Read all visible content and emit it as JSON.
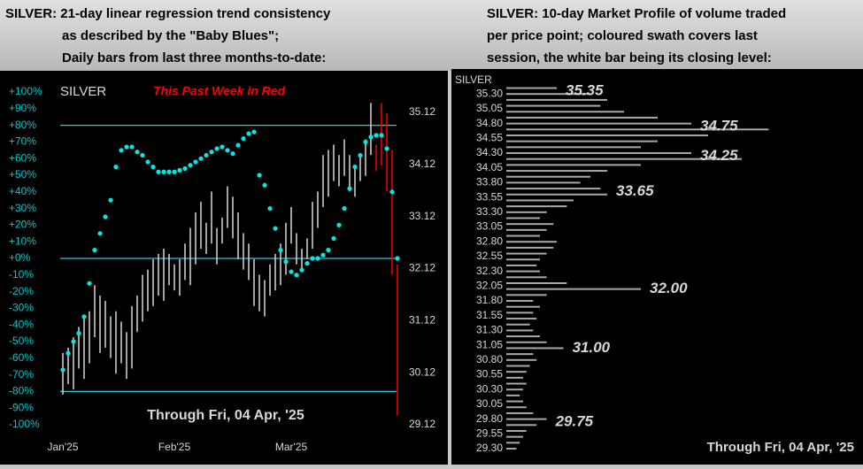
{
  "chart_data": [
    {
      "type": "regression",
      "title": [
        "SILVER:  21-day linear regression trend consistency",
        "as described by the \"Baby Blues\";",
        "Daily bars from last three months-to-date:"
      ],
      "label": "SILVER",
      "highlight_label": "This Past Week in Red",
      "highlight_color": "#ff0000",
      "highlight_count": 5,
      "footer": "Through Fri, 04 Apr, '25",
      "xlim": [
        -1,
        64
      ],
      "xticks": [
        {
          "value": 0,
          "label": "Jan'25"
        },
        {
          "value": 21,
          "label": "Feb'25"
        },
        {
          "value": 43,
          "label": "Mar'25"
        }
      ],
      "ylim": [
        -100,
        100
      ],
      "yticks": [
        {
          "value": 100,
          "label": "+100%"
        },
        {
          "value": 90,
          "label": "+90%"
        },
        {
          "value": 80,
          "label": "+80%"
        },
        {
          "value": 70,
          "label": "+70%"
        },
        {
          "value": 60,
          "label": "+60%"
        },
        {
          "value": 50,
          "label": "+50%"
        },
        {
          "value": 40,
          "label": "+40%"
        },
        {
          "value": 30,
          "label": "+30%"
        },
        {
          "value": 20,
          "label": "+20%"
        },
        {
          "value": 10,
          "label": "+10%"
        },
        {
          "value": 0,
          "label": "+0%"
        },
        {
          "value": -10,
          "label": "-10%"
        },
        {
          "value": -20,
          "label": "-20%"
        },
        {
          "value": -30,
          "label": "-30%"
        },
        {
          "value": -40,
          "label": "-40%"
        },
        {
          "value": -50,
          "label": "-50%"
        },
        {
          "value": -60,
          "label": "-60%"
        },
        {
          "value": -70,
          "label": "-70%"
        },
        {
          "value": -80,
          "label": "-80%"
        },
        {
          "value": -90,
          "label": "-90%"
        },
        {
          "value": -100,
          "label": "-100%"
        }
      ],
      "ref_lines": [
        80,
        0,
        -80
      ],
      "line_color": "#33c6e0",
      "dot_color": "#00e8e8",
      "dots": [
        -67,
        -57,
        -50,
        -45,
        -35,
        -15,
        5,
        15,
        25,
        35,
        55,
        65,
        67,
        67,
        64,
        62,
        58,
        55,
        52,
        52,
        52,
        52,
        53,
        54,
        56,
        58,
        60,
        62,
        64,
        66,
        67,
        65,
        63,
        68,
        72,
        75,
        76,
        50,
        44,
        30,
        18,
        5,
        -2,
        -8,
        -10,
        -7,
        -3,
        0,
        0,
        2,
        5,
        12,
        20,
        30,
        42,
        55,
        62,
        70,
        73,
        74,
        74,
        66,
        40,
        0
      ],
      "y2lim": [
        29.12,
        35.51
      ],
      "y2ticks": [
        35.12,
        34.12,
        33.12,
        32.12,
        31.12,
        30.12,
        29.12
      ],
      "bar_color": "#d8d8d8",
      "high": [
        30.5,
        30.6,
        30.8,
        31.0,
        31.2,
        31.3,
        31.8,
        31.6,
        31.5,
        31.2,
        31.3,
        31.1,
        30.9,
        31.4,
        31.6,
        32.0,
        32.1,
        32.3,
        32.4,
        32.5,
        32.4,
        32.2,
        32.3,
        32.6,
        32.9,
        33.2,
        33.4,
        33.0,
        33.6,
        32.9,
        33.1,
        33.7,
        33.5,
        33.2,
        32.8,
        32.6,
        32.3,
        32.0,
        31.9,
        32.2,
        32.4,
        32.6,
        33.0,
        33.3,
        32.8,
        32.5,
        32.7,
        33.4,
        33.6,
        34.3,
        34.4,
        34.5,
        34.3,
        34.6,
        34.3,
        34.1,
        34.3,
        34.6,
        35.3,
        34.5,
        35.3,
        35.1,
        34.4,
        32.2
      ],
      "low": [
        29.7,
        29.9,
        29.8,
        30.2,
        30.0,
        30.3,
        30.8,
        30.5,
        30.6,
        30.4,
        30.1,
        30.3,
        30.0,
        30.2,
        30.9,
        31.1,
        31.3,
        31.4,
        31.6,
        31.5,
        31.8,
        31.7,
        31.6,
        31.9,
        31.8,
        32.2,
        32.5,
        32.4,
        32.6,
        32.2,
        32.6,
        32.9,
        32.7,
        32.3,
        32.1,
        31.9,
        31.4,
        31.3,
        31.2,
        31.6,
        31.7,
        31.8,
        32.0,
        32.6,
        32.2,
        32.1,
        32.3,
        32.5,
        32.9,
        33.3,
        33.5,
        33.8,
        33.7,
        33.9,
        33.6,
        33.5,
        33.8,
        33.9,
        34.3,
        34.0,
        34.1,
        33.6,
        32.0,
        29.3
      ]
    },
    {
      "type": "profile",
      "title": [
        "SILVER:  10-day Market Profile of volume traded",
        "per price point; coloured swath covers last",
        "session, the white bar being its closing level:"
      ],
      "label": "SILVER",
      "footer": "Through Fri, 04 Apr, '25",
      "ylim": [
        29.2,
        35.45
      ],
      "yticks": [
        {
          "value": 35.3,
          "label": "35.30"
        },
        35.05,
        {
          "value": 34.8,
          "label": "34.80"
        },
        34.55,
        {
          "value": 34.3,
          "label": "34.30"
        },
        34.05,
        {
          "value": 33.8,
          "label": "33.80"
        },
        33.55,
        {
          "value": 33.3,
          "label": "33.30"
        },
        33.05,
        {
          "value": 32.8,
          "label": "32.80"
        },
        32.55,
        {
          "value": 32.3,
          "label": "32.30"
        },
        32.05,
        {
          "value": 31.8,
          "label": "31.80"
        },
        31.55,
        {
          "value": 31.3,
          "label": "31.30"
        },
        31.05,
        {
          "value": 30.8,
          "label": "30.80"
        },
        30.55,
        {
          "value": 30.3,
          "label": "30.30"
        },
        30.05,
        {
          "value": 29.8,
          "label": "29.80"
        },
        29.55,
        {
          "value": 29.3,
          "label": "29.30"
        }
      ],
      "xlim": [
        0,
        100
      ],
      "color": "#a8a8a8",
      "prices": [
        35.4,
        35.3,
        35.2,
        35.1,
        35.0,
        34.9,
        34.8,
        34.7,
        34.6,
        34.5,
        34.4,
        34.3,
        34.2,
        34.1,
        34.0,
        33.9,
        33.8,
        33.7,
        33.6,
        33.5,
        33.4,
        33.3,
        33.2,
        33.1,
        33.0,
        32.9,
        32.8,
        32.7,
        32.6,
        32.5,
        32.4,
        32.3,
        32.2,
        32.1,
        32.0,
        31.9,
        31.8,
        31.7,
        31.6,
        31.5,
        31.4,
        31.3,
        31.2,
        31.1,
        31.0,
        30.9,
        30.8,
        30.7,
        30.6,
        30.5,
        30.4,
        30.3,
        30.2,
        30.1,
        30.0,
        29.9,
        29.8,
        29.7,
        29.6,
        29.5,
        29.4,
        29.3
      ],
      "values": [
        15,
        25,
        30,
        28,
        35,
        45,
        55,
        78,
        60,
        45,
        40,
        55,
        70,
        40,
        30,
        25,
        22,
        28,
        30,
        20,
        18,
        12,
        10,
        14,
        12,
        10,
        15,
        14,
        12,
        10,
        9,
        10,
        12,
        18,
        40,
        12,
        8,
        10,
        8,
        9,
        7,
        8,
        10,
        12,
        17,
        8,
        9,
        7,
        6,
        5,
        6,
        5,
        4,
        5,
        6,
        8,
        12,
        9,
        6,
        5,
        4,
        3
      ],
      "annotations": [
        35.35,
        34.75,
        34.25,
        33.65,
        {
          "value": 32,
          "label": "32.00"
        },
        {
          "value": 31,
          "label": "31.00"
        },
        29.75
      ]
    }
  ]
}
